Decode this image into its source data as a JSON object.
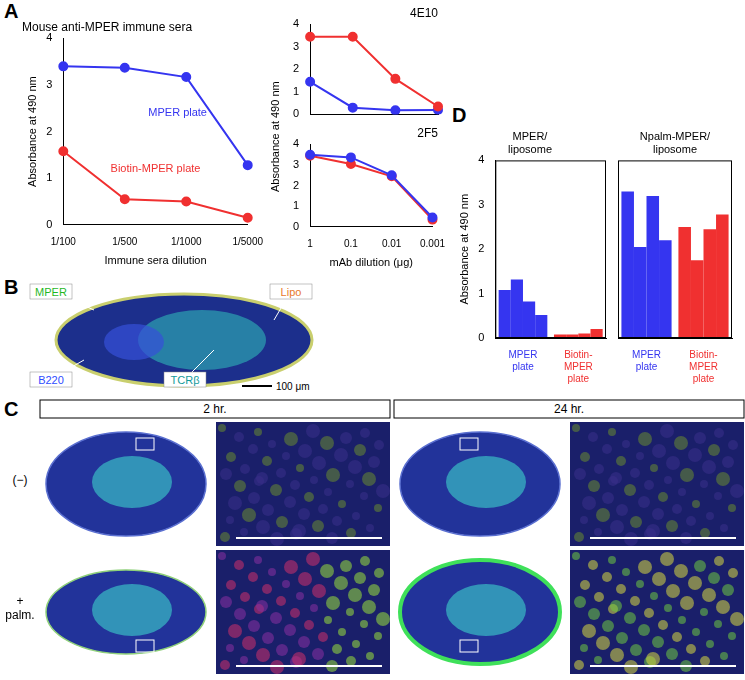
{
  "panel_labels": [
    "A",
    "B",
    "C",
    "D"
  ],
  "chart_data": [
    {
      "type": "line",
      "title": "Mouse anti-MPER immune sera",
      "xlabel": "Immune sera dilution",
      "ylabel": "Absorbance at 490 nm",
      "categories": [
        "1/100",
        "1/500",
        "1/1000",
        "1/5000"
      ],
      "series": [
        {
          "name": "MPER plate",
          "color": "#3535f0",
          "marker": "circle",
          "values": [
            3.4,
            3.37,
            3.17,
            1.28
          ]
        },
        {
          "name": "Biotin-MPER plate",
          "color": "#f03030",
          "marker": "circle",
          "values": [
            1.58,
            0.55,
            0.5,
            0.15
          ]
        }
      ],
      "ylim": [
        0,
        4
      ],
      "yticks": [
        0,
        1,
        2,
        3,
        4
      ],
      "grid": false
    },
    {
      "type": "line",
      "title": "4E10",
      "ylabel": "Absorbance at 490 nm",
      "categories": [
        "1",
        "0.1",
        "0.01",
        "0.001"
      ],
      "series": [
        {
          "color": "#f03030",
          "marker": "circle",
          "values": [
            3.45,
            3.45,
            1.58,
            0.35
          ]
        },
        {
          "color": "#3535f0",
          "marker": "circle",
          "values": [
            1.45,
            0.3,
            0.18,
            0.2
          ]
        }
      ],
      "ylim": [
        0,
        4
      ],
      "yticks": [
        0,
        1,
        2,
        3,
        4
      ],
      "grid": false,
      "tick_labels": "y"
    },
    {
      "type": "line",
      "title": "2F5",
      "xlabel": "mAb dilution (μg)",
      "categories": [
        "1",
        "0.1",
        "0.01",
        "0.001"
      ],
      "series": [
        {
          "color": "#3535f0",
          "marker": "circle",
          "values": [
            3.5,
            3.37,
            2.5,
            0.45
          ]
        },
        {
          "color": "#f03030",
          "marker": "circle",
          "values": [
            3.45,
            3.05,
            2.45,
            0.35
          ]
        }
      ],
      "ylim": [
        0,
        4
      ],
      "yticks": [
        0,
        1,
        2,
        3,
        4
      ],
      "grid": false
    },
    {
      "type": "bar",
      "title": [
        "MPER/",
        "liposome"
      ],
      "ylabel": "Absorbance at 490 nm",
      "categories": [
        "MPER plate",
        "Biotin-MPER plate"
      ],
      "series": [
        {
          "colors": [
            "#3535f0",
            "#f03030"
          ],
          "values": [
            1.08,
            0.08
          ]
        },
        {
          "colors": [
            "#3535f0",
            "#f03030"
          ],
          "values": [
            1.32,
            0.08
          ]
        },
        {
          "colors": [
            "#3535f0",
            "#f03030"
          ],
          "values": [
            0.82,
            0.1
          ]
        },
        {
          "colors": [
            "#3535f0",
            "#f03030"
          ],
          "values": [
            0.52,
            0.2
          ]
        }
      ],
      "ylim": [
        0,
        4
      ],
      "yticks": [
        0,
        1,
        2,
        3,
        4
      ],
      "grid": false
    },
    {
      "type": "bar",
      "title": [
        "Npalm-MPER/",
        "liposome"
      ],
      "categories": [
        "MPER plate",
        "Biotin-MPER plate"
      ],
      "series": [
        {
          "colors": [
            "#3535f0",
            "#f03030"
          ],
          "values": [
            3.3,
            2.5
          ]
        },
        {
          "colors": [
            "#3535f0",
            "#f03030"
          ],
          "values": [
            2.05,
            1.75
          ]
        },
        {
          "colors": [
            "#3535f0",
            "#f03030"
          ],
          "values": [
            3.2,
            2.45
          ]
        },
        {
          "colors": [
            "#3535f0",
            "#f03030"
          ],
          "values": [
            2.2,
            2.78
          ]
        }
      ],
      "ylim": [
        0,
        4
      ],
      "yticks": [
        0,
        1,
        2,
        3,
        4
      ],
      "grid": false,
      "tick_labels": "x"
    }
  ],
  "microscopy": {
    "B": {
      "labels": [
        "MPER",
        "Lipo",
        "B220",
        "TCRβ"
      ],
      "scale_bar": "100 μm"
    },
    "C": {
      "columns": [
        "2 hr.",
        "24 hr."
      ],
      "rows": [
        "(−)",
        "+ palm."
      ]
    }
  }
}
